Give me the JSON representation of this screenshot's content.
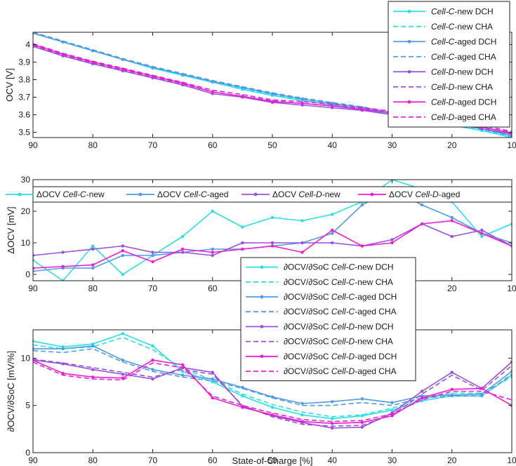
{
  "colors": {
    "cyan": "#27e0e6",
    "blue": "#4f9be6",
    "purple": "#9b4fe0",
    "magenta": "#ee1cd6"
  },
  "chart_data": [
    {
      "type": "line",
      "id": "ocv",
      "ylabel": "OCV [V]",
      "xlabel": "",
      "xlim": [
        90,
        10
      ],
      "ylim": [
        3.47,
        4.07
      ],
      "xticks": [
        90,
        80,
        70,
        60,
        50,
        40,
        30,
        20,
        10
      ],
      "yticks": [
        3.5,
        3.6,
        3.7,
        3.8,
        3.9,
        4
      ],
      "ytick_labels": [
        "3.5",
        "3.6",
        "3.7",
        "3.8",
        "3.9",
        "4"
      ],
      "legend_position": "top-right",
      "series": [
        {
          "name_italic": "Cell-C",
          "name_rest": "-new DCH",
          "color": "#27e0e6",
          "dash": false,
          "x": [
            90,
            85,
            80,
            75,
            70,
            65,
            60,
            55,
            50,
            45,
            40,
            35,
            30,
            25,
            20,
            15,
            10
          ],
          "y": [
            4.065,
            4.015,
            3.965,
            3.915,
            3.865,
            3.825,
            3.785,
            3.745,
            3.71,
            3.68,
            3.655,
            3.63,
            3.6,
            3.57,
            3.54,
            3.51,
            3.47
          ]
        },
        {
          "name_italic": "Cell-C",
          "name_rest": "-new CHA",
          "color": "#27e0e6",
          "dash": true,
          "x": [
            90,
            85,
            80,
            75,
            70,
            65,
            60,
            55,
            50,
            45,
            40,
            35,
            30,
            25,
            20,
            15,
            10
          ],
          "y": [
            4.07,
            4.02,
            3.97,
            3.92,
            3.87,
            3.83,
            3.79,
            3.75,
            3.715,
            3.685,
            3.66,
            3.635,
            3.605,
            3.575,
            3.545,
            3.515,
            3.475
          ]
        },
        {
          "name_italic": "Cell-C",
          "name_rest": "-aged DCH",
          "color": "#4f9be6",
          "dash": false,
          "x": [
            90,
            85,
            80,
            75,
            70,
            65,
            60,
            55,
            50,
            45,
            40,
            35,
            30,
            25,
            20,
            15,
            10
          ],
          "y": [
            4.065,
            4.015,
            3.965,
            3.915,
            3.87,
            3.83,
            3.79,
            3.755,
            3.72,
            3.69,
            3.665,
            3.64,
            3.61,
            3.58,
            3.555,
            3.52,
            3.48
          ]
        },
        {
          "name_italic": "Cell-C",
          "name_rest": "-aged CHA",
          "color": "#4f9be6",
          "dash": true,
          "x": [
            90,
            85,
            80,
            75,
            70,
            65,
            60,
            55,
            50,
            45,
            40,
            35,
            30,
            25,
            20,
            15,
            10
          ],
          "y": [
            4.07,
            4.02,
            3.97,
            3.92,
            3.875,
            3.835,
            3.795,
            3.76,
            3.725,
            3.695,
            3.67,
            3.645,
            3.615,
            3.585,
            3.56,
            3.525,
            3.485
          ]
        },
        {
          "name_italic": "Cell-D",
          "name_rest": "-new DCH",
          "color": "#9b4fe0",
          "dash": false,
          "x": [
            90,
            85,
            80,
            75,
            70,
            65,
            60,
            55,
            50,
            45,
            40,
            35,
            30,
            25,
            20,
            15,
            10
          ],
          "y": [
            3.99,
            3.935,
            3.89,
            3.85,
            3.81,
            3.77,
            3.72,
            3.7,
            3.67,
            3.655,
            3.64,
            3.625,
            3.6,
            3.575,
            3.555,
            3.52,
            3.49
          ]
        },
        {
          "name_italic": "Cell-D",
          "name_rest": "-new CHA",
          "color": "#9b4fe0",
          "dash": true,
          "x": [
            90,
            85,
            80,
            75,
            70,
            65,
            60,
            55,
            50,
            45,
            40,
            35,
            30,
            25,
            20,
            15,
            10
          ],
          "y": [
            3.995,
            3.94,
            3.895,
            3.855,
            3.815,
            3.775,
            3.73,
            3.705,
            3.68,
            3.665,
            3.65,
            3.635,
            3.61,
            3.585,
            3.565,
            3.53,
            3.5
          ]
        },
        {
          "name_italic": "Cell-D",
          "name_rest": "-aged DCH",
          "color": "#ee1cd6",
          "dash": false,
          "x": [
            90,
            85,
            80,
            75,
            70,
            65,
            60,
            55,
            50,
            45,
            40,
            35,
            30,
            25,
            20,
            15,
            10
          ],
          "y": [
            4.0,
            3.945,
            3.9,
            3.86,
            3.82,
            3.78,
            3.73,
            3.705,
            3.675,
            3.665,
            3.65,
            3.63,
            3.61,
            3.59,
            3.57,
            3.53,
            3.495
          ]
        },
        {
          "name_italic": "Cell-D",
          "name_rest": "-aged CHA",
          "color": "#ee1cd6",
          "dash": true,
          "x": [
            90,
            85,
            80,
            75,
            70,
            65,
            60,
            55,
            50,
            45,
            40,
            35,
            30,
            25,
            20,
            15,
            10
          ],
          "y": [
            4.005,
            3.95,
            3.905,
            3.865,
            3.825,
            3.785,
            3.74,
            3.715,
            3.685,
            3.675,
            3.66,
            3.64,
            3.62,
            3.6,
            3.58,
            3.54,
            3.505
          ]
        }
      ]
    },
    {
      "type": "line",
      "id": "docv",
      "ylabel": "ΔOCV [mV]",
      "xlabel": "",
      "xlim": [
        90,
        10
      ],
      "ylim": [
        -2,
        30
      ],
      "xticks": [
        90,
        80,
        70,
        60,
        50,
        40,
        30,
        20,
        10
      ],
      "yticks": [
        0,
        10,
        20,
        30
      ],
      "ytick_labels": [
        "0",
        "10",
        "20",
        "30"
      ],
      "legend_position": "top",
      "series": [
        {
          "name_prefix": "ΔOCV  ",
          "name_italic": "Cell-C",
          "name_rest": "-new",
          "color": "#27e0e6",
          "dash": false,
          "x": [
            90,
            85,
            80,
            75,
            70,
            65,
            60,
            55,
            50,
            45,
            40,
            35,
            30,
            25,
            20,
            15,
            10
          ],
          "y": [
            4.5,
            -2,
            9,
            0,
            6,
            12,
            20,
            15,
            18,
            17,
            19,
            23,
            30,
            27,
            23,
            12,
            16
          ]
        },
        {
          "name_prefix": "ΔOCV  ",
          "name_italic": "Cell-C",
          "name_rest": "-aged",
          "color": "#4f9be6",
          "dash": false,
          "x": [
            90,
            85,
            80,
            75,
            70,
            65,
            60,
            55,
            50,
            45,
            40,
            35,
            30,
            25,
            20,
            15,
            10
          ],
          "y": [
            1,
            2,
            2,
            6,
            6,
            7,
            8,
            8,
            9,
            10,
            13,
            22,
            27,
            22,
            18,
            13,
            10
          ]
        },
        {
          "name_prefix": "ΔOCV  ",
          "name_italic": "Cell-D",
          "name_rest": "-new",
          "color": "#9b4fe0",
          "dash": false,
          "x": [
            90,
            85,
            80,
            75,
            70,
            65,
            60,
            55,
            50,
            45,
            40,
            35,
            30,
            25,
            20,
            15,
            10
          ],
          "y": [
            6,
            7,
            8,
            9,
            7,
            7,
            6,
            10,
            10,
            10,
            10,
            9,
            11,
            16,
            12,
            14,
            9
          ]
        },
        {
          "name_prefix": "ΔOCV  ",
          "name_italic": "Cell-D",
          "name_rest": "-aged",
          "color": "#ee1cd6",
          "dash": false,
          "x": [
            90,
            85,
            80,
            75,
            70,
            65,
            60,
            55,
            50,
            45,
            40,
            35,
            30,
            25,
            20,
            15,
            10
          ],
          "y": [
            2,
            2.5,
            3,
            7.5,
            4,
            8,
            7,
            8,
            9,
            7,
            14,
            9,
            10,
            16,
            17,
            13,
            9
          ]
        }
      ]
    },
    {
      "type": "line",
      "id": "dsoc",
      "ylabel": "∂OCV/∂SoC [mV/%]",
      "xlabel": "State-of-Charge [%]",
      "xlim": [
        90,
        10
      ],
      "ylim": [
        0,
        13
      ],
      "xticks": [
        90,
        80,
        70,
        60,
        50,
        40,
        30,
        20,
        10
      ],
      "xtick_labels": [
        "90",
        "80",
        "70",
        "60",
        "50",
        "40",
        "30",
        "20",
        "10"
      ],
      "yticks": [
        0,
        5,
        10
      ],
      "ytick_labels": [
        "0",
        "5",
        "10"
      ],
      "legend_position": "top-center",
      "series": [
        {
          "name_prefix": "∂OCV/∂SoC  ",
          "name_italic": "Cell-C",
          "name_rest": "-new DCH",
          "color": "#27e0e6",
          "dash": false,
          "x": [
            90,
            85,
            80,
            75,
            70,
            65,
            60,
            55,
            50,
            45,
            40,
            35,
            30,
            25,
            20,
            15,
            10
          ],
          "y": [
            11.8,
            11.2,
            11.5,
            12.6,
            11.3,
            8.6,
            7.5,
            6.0,
            4.8,
            4.0,
            3.6,
            3.9,
            4.5,
            5.5,
            6.0,
            6.0,
            8.2
          ]
        },
        {
          "name_prefix": "∂OCV/∂SoC  ",
          "name_italic": "Cell-C",
          "name_rest": "-new CHA",
          "color": "#27e0e6",
          "dash": true,
          "x": [
            90,
            85,
            80,
            75,
            70,
            65,
            60,
            55,
            50,
            45,
            40,
            35,
            30,
            25,
            20,
            15,
            10
          ],
          "y": [
            11.4,
            11.0,
            11.2,
            12.2,
            10.9,
            8.9,
            7.7,
            6.2,
            5.1,
            4.3,
            3.8,
            4.0,
            4.7,
            5.7,
            6.3,
            6.3,
            8.0
          ]
        },
        {
          "name_prefix": "∂OCV/∂SoC  ",
          "name_italic": "Cell-C",
          "name_rest": "-aged DCH",
          "color": "#4f9be6",
          "dash": false,
          "x": [
            90,
            85,
            80,
            75,
            70,
            65,
            60,
            55,
            50,
            45,
            40,
            35,
            30,
            25,
            20,
            15,
            10
          ],
          "y": [
            11.0,
            11.0,
            11.3,
            9.8,
            8.8,
            8.2,
            7.8,
            6.9,
            5.9,
            5.2,
            5.4,
            5.7,
            5.3,
            6.0,
            6.1,
            6.2,
            8.6
          ]
        },
        {
          "name_prefix": "∂OCV/∂SoC  ",
          "name_italic": "Cell-C",
          "name_rest": "-aged CHA",
          "color": "#4f9be6",
          "dash": true,
          "x": [
            90,
            85,
            80,
            75,
            70,
            65,
            60,
            55,
            50,
            45,
            40,
            35,
            30,
            25,
            20,
            15,
            10
          ],
          "y": [
            10.8,
            10.6,
            11.0,
            9.6,
            8.6,
            8.0,
            7.6,
            6.8,
            5.8,
            5.0,
            5.0,
            5.3,
            5.0,
            5.8,
            6.0,
            6.0,
            8.3
          ]
        },
        {
          "name_prefix": "∂OCV/∂SoC  ",
          "name_italic": "Cell-D",
          "name_rest": "-new DCH",
          "color": "#9b4fe0",
          "dash": false,
          "x": [
            90,
            85,
            80,
            75,
            70,
            65,
            60,
            55,
            50,
            45,
            40,
            35,
            30,
            25,
            20,
            15,
            10
          ],
          "y": [
            9.8,
            9.4,
            8.8,
            8.3,
            7.8,
            9.0,
            8.5,
            4.9,
            3.9,
            3.2,
            2.6,
            2.7,
            4.2,
            6.5,
            8.5,
            6.8,
            9.6
          ]
        },
        {
          "name_prefix": "∂OCV/∂SoC  ",
          "name_italic": "Cell-D",
          "name_rest": "-new CHA",
          "color": "#9b4fe0",
          "dash": true,
          "x": [
            90,
            85,
            80,
            75,
            70,
            65,
            60,
            55,
            50,
            45,
            40,
            35,
            30,
            25,
            20,
            15,
            10
          ],
          "y": [
            9.9,
            9.5,
            9.0,
            8.5,
            8.0,
            8.8,
            8.3,
            5.0,
            3.8,
            3.0,
            2.8,
            2.9,
            4.0,
            6.2,
            8.2,
            6.6,
            9.2
          ]
        },
        {
          "name_prefix": "∂OCV/∂SoC  ",
          "name_italic": "Cell-D",
          "name_rest": "-aged DCH",
          "color": "#ee1cd6",
          "dash": false,
          "x": [
            90,
            85,
            80,
            75,
            70,
            65,
            60,
            55,
            50,
            45,
            40,
            35,
            30,
            25,
            20,
            15,
            10
          ],
          "y": [
            9.8,
            8.4,
            8.0,
            7.9,
            9.8,
            9.3,
            5.8,
            4.8,
            4.0,
            3.3,
            3.1,
            3.2,
            3.9,
            5.8,
            6.7,
            6.8,
            5.0
          ]
        },
        {
          "name_prefix": "∂OCV/∂SoC  ",
          "name_italic": "Cell-D",
          "name_rest": "-aged CHA",
          "color": "#ee1cd6",
          "dash": true,
          "x": [
            90,
            85,
            80,
            75,
            70,
            65,
            60,
            55,
            50,
            45,
            40,
            35,
            30,
            25,
            20,
            15,
            10
          ],
          "y": [
            9.6,
            8.2,
            7.8,
            7.7,
            9.5,
            9.0,
            6.0,
            5.0,
            4.2,
            3.5,
            3.3,
            3.4,
            4.1,
            5.6,
            6.5,
            6.5,
            5.6
          ]
        }
      ]
    }
  ]
}
